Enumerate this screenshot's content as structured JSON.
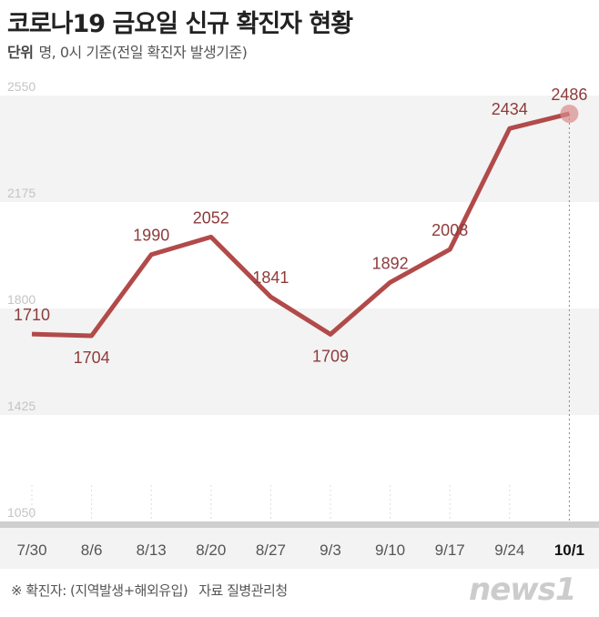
{
  "title": "코로나19 금요일 신규 확진자 현황",
  "subtitle": {
    "unit_label": "단위",
    "text": "명, 0시 기준(전일 확진자 발생기준)"
  },
  "footer": {
    "note": "※ 확진자: (지역발생+해외유입)",
    "source_label": "자료",
    "source": "질병관리청"
  },
  "logo": "news1",
  "chart_data": {
    "type": "line",
    "title": "코로나19 금요일 신규 확진자 현황",
    "categories": [
      "7/30",
      "8/6",
      "8/13",
      "8/20",
      "8/27",
      "9/3",
      "9/10",
      "9/17",
      "9/24",
      "10/1"
    ],
    "values": [
      1710,
      1704,
      1990,
      2052,
      1841,
      1709,
      1892,
      2008,
      2434,
      2486
    ],
    "ylim": [
      1050,
      2550
    ],
    "yticks": [
      2550,
      2175,
      1800,
      1425,
      1050
    ],
    "line_color": "#b24a4a",
    "label_color": "#8e3b3b",
    "highlight": "10/1",
    "grid": "alternating bands"
  }
}
